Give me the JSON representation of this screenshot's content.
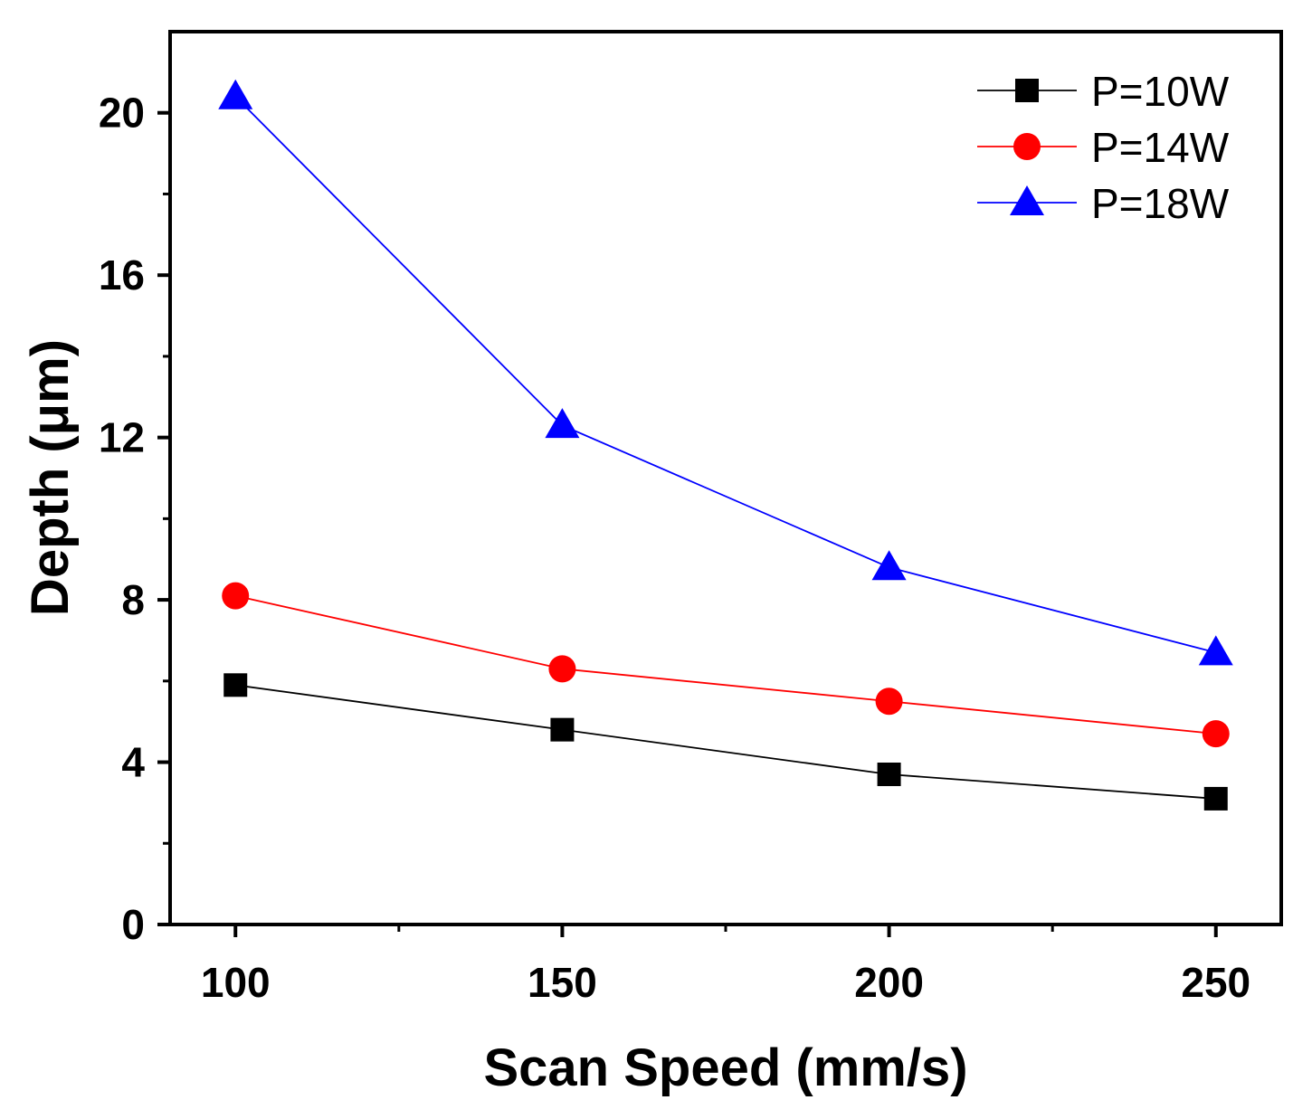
{
  "chart_data": {
    "type": "line",
    "title": "",
    "xlabel": "Scan Speed (mm/s)",
    "ylabel": "Depth (μm)",
    "x": [
      100,
      150,
      200,
      250
    ],
    "xlim": [
      90,
      260
    ],
    "ylim": [
      0,
      22
    ],
    "xticks": [
      100,
      150,
      200,
      250
    ],
    "yticks": [
      0,
      4,
      8,
      12,
      16,
      20
    ],
    "x_tick_labels": [
      "100",
      "150",
      "200",
      "250"
    ],
    "y_tick_labels": [
      "0",
      "4",
      "8",
      "12",
      "16",
      "20"
    ],
    "grid": false,
    "legend_position": "top-right",
    "series": [
      {
        "name": "P=10W",
        "values": [
          5.9,
          4.8,
          3.7,
          3.1
        ],
        "color": "#000000",
        "marker": "square"
      },
      {
        "name": "P=14W",
        "values": [
          8.1,
          6.3,
          5.5,
          4.7
        ],
        "color": "#ff0000",
        "marker": "circle"
      },
      {
        "name": "P=18W",
        "values": [
          20.4,
          12.3,
          8.8,
          6.7
        ],
        "color": "#0000ff",
        "marker": "triangle"
      }
    ]
  }
}
